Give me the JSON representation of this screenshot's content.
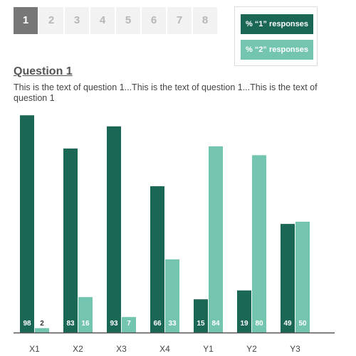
{
  "pagination": {
    "pages": [
      "1",
      "2",
      "3",
      "4",
      "5",
      "6",
      "7",
      "8"
    ],
    "active": 0
  },
  "legend": {
    "series1": "% “1” responses",
    "series2": "% “2” responses"
  },
  "question": {
    "title": "Question 1",
    "text": "This is the text of question 1...This is the text of question 1...This is the text of question 1"
  },
  "colors": {
    "series1": "#1a6756",
    "series2": "#74c5b0",
    "axis": "#555555"
  },
  "chart_data": {
    "type": "bar",
    "categories": [
      "X1",
      "X2",
      "X3",
      "X4",
      "Y1",
      "Y2",
      "Y3"
    ],
    "series": [
      {
        "name": "% “1” responses",
        "values": [
          98,
          83,
          93,
          66,
          15,
          19,
          49
        ]
      },
      {
        "name": "% “2” responses",
        "values": [
          2,
          16,
          7,
          33,
          84,
          80,
          50
        ]
      }
    ],
    "ylim": [
      0,
      100
    ],
    "grid": false,
    "legend_position": "top-right"
  }
}
